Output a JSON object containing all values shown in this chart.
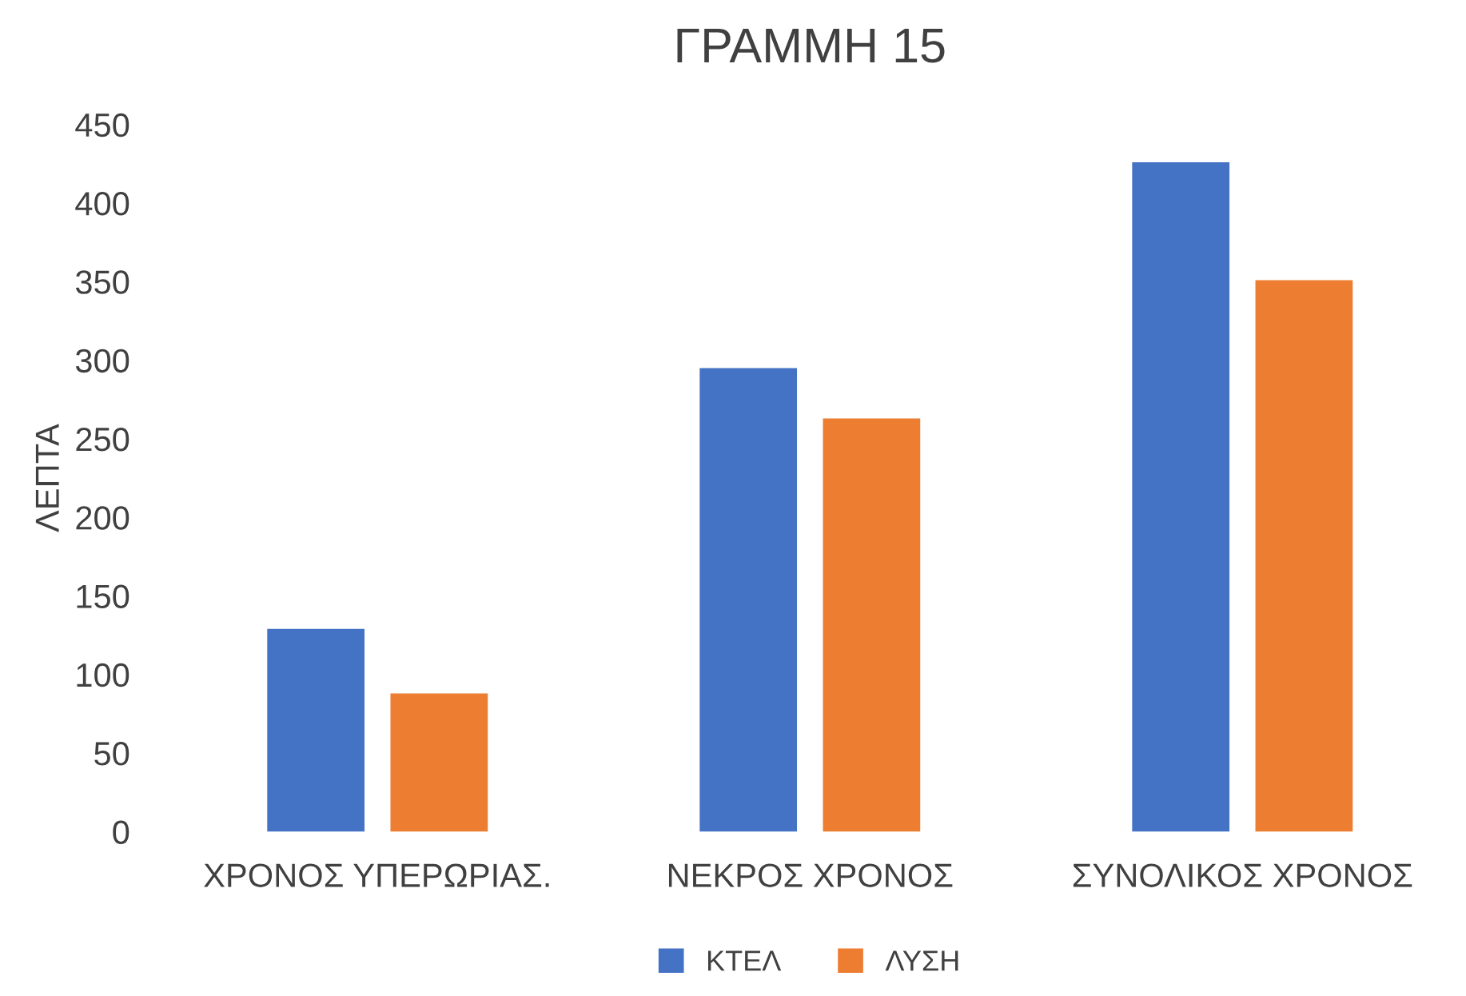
{
  "chart_data": {
    "type": "bar",
    "title": "ΓΡΑΜΜΗ 15",
    "ylabel": "ΛΕΠΤΑ",
    "categories": [
      "ΧΡΟΝΟΣ ΥΠΕΡΩΡΙΑΣ.",
      "ΝΕΚΡΟΣ ΧΡΟΝΟΣ",
      "ΣΥΝΟΛΙΚΟΣ ΧΡΟΝΟΣ"
    ],
    "series": [
      {
        "name": "ΚΤΕΛ",
        "color": "#4472c4",
        "values": [
          129,
          295,
          426
        ]
      },
      {
        "name": "ΛΥΣΗ",
        "color": "#ed7d31",
        "values": [
          88,
          263,
          351
        ]
      }
    ],
    "ylim": [
      0,
      450
    ],
    "yticks": [
      0,
      50,
      100,
      150,
      200,
      250,
      300,
      350,
      400,
      450
    ],
    "grid": false,
    "legend": "bottom"
  }
}
